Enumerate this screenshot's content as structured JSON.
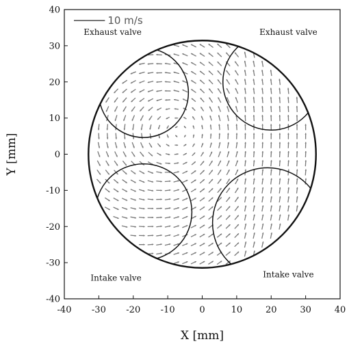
{
  "chart_data": {
    "type": "vector-field",
    "xlabel": "X [mm]",
    "ylabel": "Y [mm]",
    "xlim": [
      -40,
      40
    ],
    "ylim": [
      -40,
      40
    ],
    "xticks": [
      -40,
      -30,
      -20,
      -10,
      0,
      10,
      20,
      30,
      40
    ],
    "yticks": [
      -40,
      -30,
      -20,
      -10,
      0,
      10,
      20,
      30,
      40
    ],
    "grid": false,
    "scale_label": "10 m/s",
    "scale_value_ms": 10,
    "cylinder": {
      "cx": 0,
      "cy": 0,
      "r": 33
    },
    "valves": [
      {
        "label": "Exhaust valve",
        "cx": -17,
        "cy": 17,
        "r": 13
      },
      {
        "label": "Exhaust valve",
        "cx": 20,
        "cy": 20,
        "r": 14
      },
      {
        "label": "Intake valve",
        "cx": -17,
        "cy": -16,
        "r": 14
      },
      {
        "label": "Intake valve",
        "cx": 19,
        "cy": -19,
        "r": 16
      }
    ],
    "annotations": [
      {
        "text": "Exhaust valve",
        "x": -26,
        "y": 33
      },
      {
        "text": "Exhaust valve",
        "x": 25,
        "y": 33
      },
      {
        "text": "Intake valve",
        "x": -25,
        "y": -35
      },
      {
        "text": "Intake valve",
        "x": 25,
        "y": -34
      }
    ],
    "vector_field": {
      "grid_step_mm": 2.5,
      "vortex_center": [
        -6,
        6
      ],
      "arrow_color": "#777777"
    }
  },
  "colors": {
    "axis": "#111111",
    "arrow": "#777777",
    "scale": "#777777"
  }
}
